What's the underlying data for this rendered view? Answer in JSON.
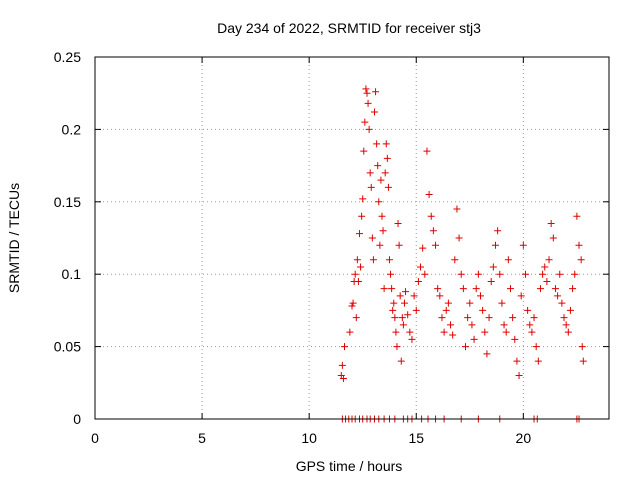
{
  "chart_data": {
    "type": "scatter",
    "title": "Day 234 of 2022, SRMTID for receiver stj3",
    "xlabel": "GPS time / hours",
    "ylabel": "SRMTID / TECUs",
    "xlim": [
      0,
      24
    ],
    "ylim": [
      0,
      0.25
    ],
    "xticks": [
      0,
      5,
      10,
      15,
      20
    ],
    "xtick_labels": [
      "0",
      "5",
      "10",
      "15",
      "20"
    ],
    "yticks": [
      0,
      0.05,
      0.1,
      0.15,
      0.2,
      0.25
    ],
    "ytick_labels": [
      "0",
      "0.05",
      "0.1",
      "0.15",
      "0.2",
      "0.25"
    ],
    "grid": true,
    "legend": "none",
    "marker": "+",
    "color": "#e00000",
    "series": [
      {
        "points": [
          [
            11.5,
            0.03
          ],
          [
            11.55,
            0.037
          ],
          [
            11.6,
            0.028
          ],
          [
            11.65,
            0.05
          ],
          [
            11.9,
            0.06
          ],
          [
            12.0,
            0.078
          ],
          [
            12.05,
            0.08
          ],
          [
            12.1,
            0.095
          ],
          [
            12.15,
            0.1
          ],
          [
            12.2,
            0.07
          ],
          [
            12.25,
            0.11
          ],
          [
            12.3,
            0.095
          ],
          [
            12.35,
            0.128
          ],
          [
            12.4,
            0.105
          ],
          [
            12.45,
            0.14
          ],
          [
            12.5,
            0.152
          ],
          [
            12.55,
            0.185
          ],
          [
            12.6,
            0.205
          ],
          [
            12.65,
            0.228
          ],
          [
            12.7,
            0.225
          ],
          [
            12.75,
            0.218
          ],
          [
            12.8,
            0.2
          ],
          [
            12.85,
            0.17
          ],
          [
            12.9,
            0.16
          ],
          [
            12.95,
            0.125
          ],
          [
            13.0,
            0.11
          ],
          [
            13.05,
            0.212
          ],
          [
            13.1,
            0.226
          ],
          [
            13.15,
            0.19
          ],
          [
            13.2,
            0.175
          ],
          [
            13.25,
            0.15
          ],
          [
            13.3,
            0.12
          ],
          [
            13.35,
            0.165
          ],
          [
            13.4,
            0.14
          ],
          [
            13.45,
            0.13
          ],
          [
            13.5,
            0.09
          ],
          [
            13.55,
            0.17
          ],
          [
            13.6,
            0.19
          ],
          [
            13.65,
            0.18
          ],
          [
            13.7,
            0.16
          ],
          [
            13.75,
            0.11
          ],
          [
            13.8,
            0.1
          ],
          [
            13.85,
            0.09
          ],
          [
            13.9,
            0.075
          ],
          [
            13.95,
            0.08
          ],
          [
            14.0,
            0.07
          ],
          [
            14.05,
            0.06
          ],
          [
            14.1,
            0.05
          ],
          [
            14.15,
            0.135
          ],
          [
            14.2,
            0.12
          ],
          [
            14.25,
            0.085
          ],
          [
            14.3,
            0.04
          ],
          [
            14.35,
            0.07
          ],
          [
            14.4,
            0.065
          ],
          [
            14.45,
            0.08
          ],
          [
            14.5,
            0.088
          ],
          [
            14.6,
            0.072
          ],
          [
            14.7,
            0.06
          ],
          [
            14.8,
            0.055
          ],
          [
            14.9,
            0.085
          ],
          [
            15.0,
            0.075
          ],
          [
            15.1,
            0.095
          ],
          [
            15.2,
            0.105
          ],
          [
            15.3,
            0.118
          ],
          [
            15.4,
            0.1
          ],
          [
            15.5,
            0.185
          ],
          [
            15.6,
            0.155
          ],
          [
            15.7,
            0.14
          ],
          [
            15.8,
            0.13
          ],
          [
            15.9,
            0.12
          ],
          [
            16.0,
            0.09
          ],
          [
            16.1,
            0.085
          ],
          [
            16.2,
            0.07
          ],
          [
            16.3,
            0.06
          ],
          [
            16.4,
            0.075
          ],
          [
            16.5,
            0.08
          ],
          [
            16.6,
            0.065
          ],
          [
            16.7,
            0.058
          ],
          [
            16.8,
            0.11
          ],
          [
            16.9,
            0.145
          ],
          [
            17.0,
            0.125
          ],
          [
            17.1,
            0.1
          ],
          [
            17.2,
            0.09
          ],
          [
            17.3,
            0.05
          ],
          [
            17.4,
            0.07
          ],
          [
            17.5,
            0.08
          ],
          [
            17.6,
            0.065
          ],
          [
            17.7,
            0.055
          ],
          [
            17.8,
            0.09
          ],
          [
            17.9,
            0.1
          ],
          [
            18.0,
            0.085
          ],
          [
            18.1,
            0.075
          ],
          [
            18.2,
            0.06
          ],
          [
            18.3,
            0.045
          ],
          [
            18.4,
            0.07
          ],
          [
            18.5,
            0.095
          ],
          [
            18.6,
            0.105
          ],
          [
            18.7,
            0.12
          ],
          [
            18.8,
            0.13
          ],
          [
            18.9,
            0.1
          ],
          [
            19.0,
            0.08
          ],
          [
            19.1,
            0.065
          ],
          [
            19.2,
            0.06
          ],
          [
            19.3,
            0.11
          ],
          [
            19.4,
            0.09
          ],
          [
            19.5,
            0.07
          ],
          [
            19.6,
            0.055
          ],
          [
            19.7,
            0.04
          ],
          [
            19.8,
            0.03
          ],
          [
            19.9,
            0.085
          ],
          [
            20.0,
            0.12
          ],
          [
            20.1,
            0.1
          ],
          [
            20.2,
            0.075
          ],
          [
            20.3,
            0.065
          ],
          [
            20.4,
            0.06
          ],
          [
            20.5,
            0.07
          ],
          [
            20.6,
            0.05
          ],
          [
            20.7,
            0.04
          ],
          [
            20.8,
            0.09
          ],
          [
            20.9,
            0.1
          ],
          [
            21.0,
            0.105
          ],
          [
            21.1,
            0.095
          ],
          [
            21.2,
            0.11
          ],
          [
            21.3,
            0.135
          ],
          [
            21.4,
            0.125
          ],
          [
            21.5,
            0.09
          ],
          [
            21.6,
            0.085
          ],
          [
            21.7,
            0.1
          ],
          [
            21.8,
            0.08
          ],
          [
            21.9,
            0.07
          ],
          [
            22.0,
            0.065
          ],
          [
            22.1,
            0.06
          ],
          [
            22.2,
            0.075
          ],
          [
            22.3,
            0.09
          ],
          [
            22.4,
            0.1
          ],
          [
            22.5,
            0.14
          ],
          [
            22.6,
            0.12
          ],
          [
            22.7,
            0.11
          ],
          [
            22.75,
            0.05
          ],
          [
            22.8,
            0.04
          ]
        ]
      },
      {
        "points": [
          [
            11.55,
            0
          ],
          [
            11.7,
            0
          ],
          [
            11.85,
            0
          ],
          [
            12.0,
            0
          ],
          [
            12.15,
            0
          ],
          [
            12.35,
            0
          ],
          [
            12.5,
            0
          ],
          [
            12.7,
            0
          ],
          [
            12.85,
            0
          ],
          [
            13.05,
            0
          ],
          [
            13.25,
            0
          ],
          [
            13.5,
            0
          ],
          [
            13.75,
            0
          ],
          [
            14.0,
            0
          ],
          [
            14.4,
            0
          ],
          [
            14.6,
            0
          ],
          [
            14.8,
            0
          ],
          [
            15.25,
            0
          ],
          [
            15.55,
            0
          ],
          [
            15.9,
            0
          ],
          [
            16.3,
            0
          ],
          [
            17.1,
            0
          ],
          [
            17.9,
            0
          ],
          [
            18.9,
            0
          ],
          [
            20.5,
            0
          ],
          [
            20.65,
            0
          ],
          [
            22.5,
            0
          ],
          [
            22.6,
            0
          ]
        ]
      }
    ]
  }
}
